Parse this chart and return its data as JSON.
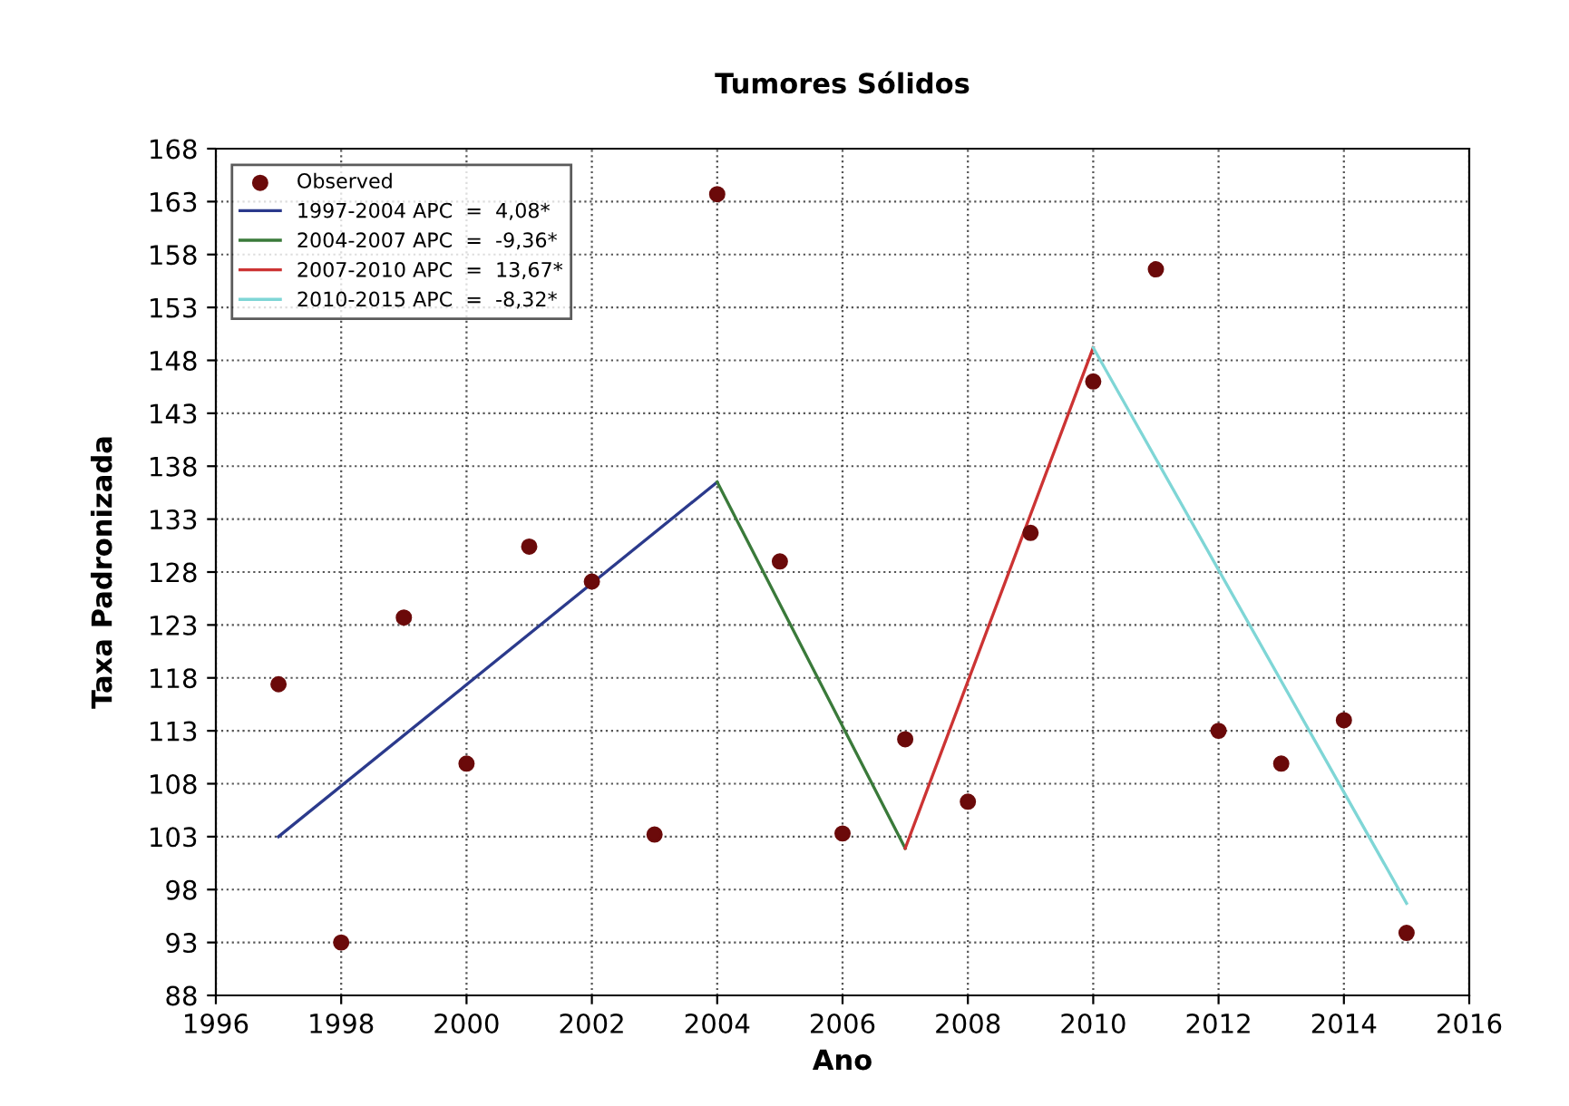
{
  "chart_data": {
    "type": "line",
    "title": "Tumores Sólidos",
    "xlabel": "Ano",
    "ylabel": "Taxa Padronizada",
    "xlim": [
      1996,
      2016
    ],
    "xticks": [
      1996,
      1998,
      2000,
      2002,
      2004,
      2006,
      2008,
      2010,
      2012,
      2014,
      2016
    ],
    "ylim": [
      88,
      168
    ],
    "yticks": [
      88,
      93,
      98,
      103,
      108,
      113,
      118,
      123,
      128,
      133,
      138,
      143,
      148,
      153,
      158,
      163,
      168
    ],
    "grid": true,
    "legend": "top left",
    "series": [
      {
        "name": "Observed",
        "type": "scatter",
        "marker": "circle",
        "color": "#6b0a0a",
        "x": [
          1997,
          1998,
          1999,
          2000,
          2001,
          2002,
          2003,
          2004,
          2005,
          2006,
          2007,
          2008,
          2009,
          2010,
          2011,
          2012,
          2013,
          2014,
          2015
        ],
        "values": [
          117.4,
          93,
          123.7,
          109.9,
          130.4,
          127.1,
          103.2,
          163.7,
          129.0,
          103.3,
          112.2,
          106.3,
          131.7,
          146.0,
          156.6,
          113.0,
          109.9,
          114.0,
          93.9
        ]
      },
      {
        "name": "1997-2004 APC  =  4,08*",
        "color": "#2b3a8c",
        "x": [
          1997,
          2004
        ],
        "values": [
          103.0,
          136.5
        ]
      },
      {
        "name": "2004-2007 APC  =  -9,36*",
        "color": "#3a7a3a",
        "x": [
          2004,
          2007
        ],
        "values": [
          136.5,
          101.9
        ]
      },
      {
        "name": "2007-2010 APC  =  13,67*",
        "color": "#cc3333",
        "x": [
          2007,
          2010
        ],
        "values": [
          101.9,
          149.2
        ]
      },
      {
        "name": "2010-2015 APC  =  -8,32*",
        "color": "#7fd6d6",
        "x": [
          2010,
          2015
        ],
        "values": [
          149.2,
          96.7
        ]
      }
    ]
  }
}
